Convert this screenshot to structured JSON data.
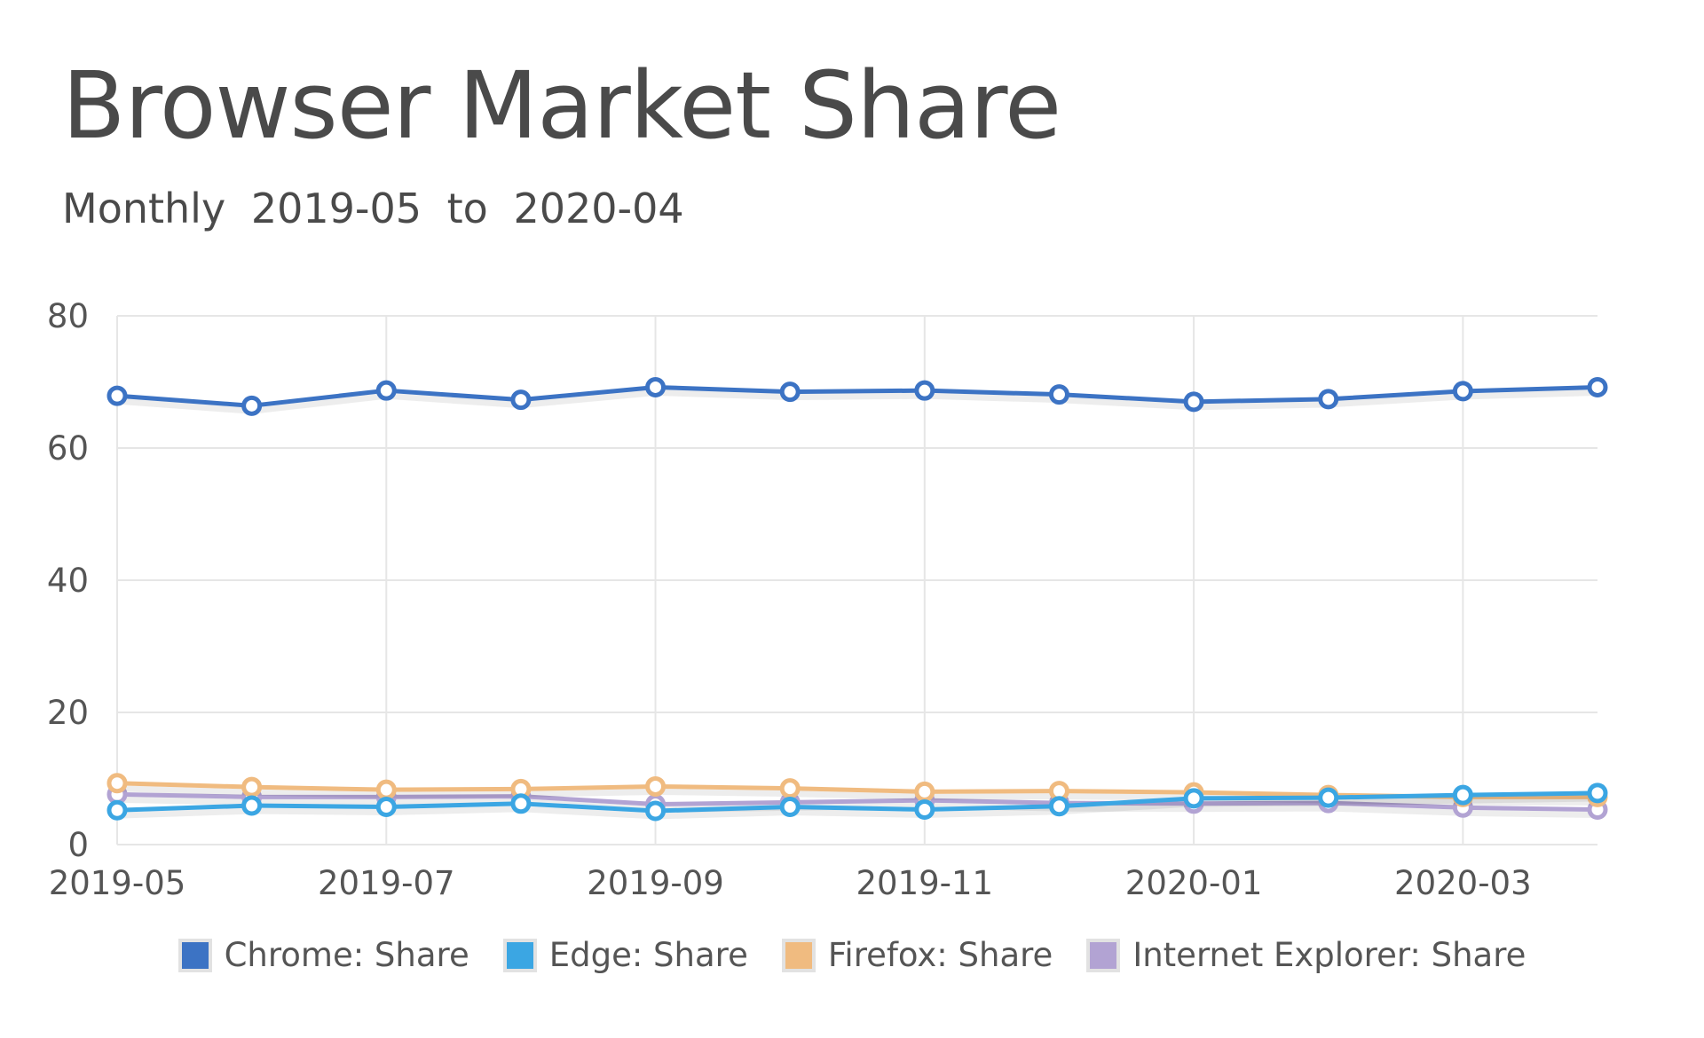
{
  "header": {
    "title": "Browser Market Share",
    "subtitle_frequency": "Monthly",
    "subtitle_start": "2019-05",
    "subtitle_to": "to",
    "subtitle_end": "2020-04"
  },
  "chart_data": {
    "type": "line",
    "title": "Browser Market Share",
    "subtitle": "Monthly 2019-05 to 2020-04",
    "x": [
      "2019-05",
      "2019-06",
      "2019-07",
      "2019-08",
      "2019-09",
      "2019-10",
      "2019-11",
      "2019-12",
      "2020-01",
      "2020-02",
      "2020-03",
      "2020-04"
    ],
    "x_tick_labels": [
      "2019-05",
      "2019-07",
      "2019-09",
      "2019-11",
      "2020-01",
      "2020-03"
    ],
    "y_ticks": [
      0,
      20,
      40,
      60,
      80
    ],
    "ylim": [
      0,
      80
    ],
    "grid": true,
    "legend_position": "bottom",
    "series": [
      {
        "name": "Chrome: Share",
        "color": "#3c73c4",
        "values": [
          67.9,
          66.4,
          68.7,
          67.3,
          69.2,
          68.5,
          68.7,
          68.1,
          67.0,
          67.4,
          68.6,
          69.2
        ]
      },
      {
        "name": "Edge: Share",
        "color": "#3ba6e3",
        "values": [
          5.2,
          5.9,
          5.7,
          6.2,
          5.1,
          5.7,
          5.3,
          5.8,
          7.0,
          7.1,
          7.5,
          7.8
        ]
      },
      {
        "name": "Firefox: Share",
        "color": "#f0bb80",
        "values": [
          9.3,
          8.7,
          8.3,
          8.4,
          8.8,
          8.5,
          8.0,
          8.1,
          7.9,
          7.5,
          7.2,
          7.2
        ]
      },
      {
        "name": "Internet Explorer: Share",
        "color": "#b2a3d3",
        "values": [
          7.6,
          7.2,
          7.2,
          7.3,
          6.1,
          6.4,
          6.7,
          6.3,
          6.2,
          6.3,
          5.6,
          5.3
        ]
      }
    ]
  }
}
